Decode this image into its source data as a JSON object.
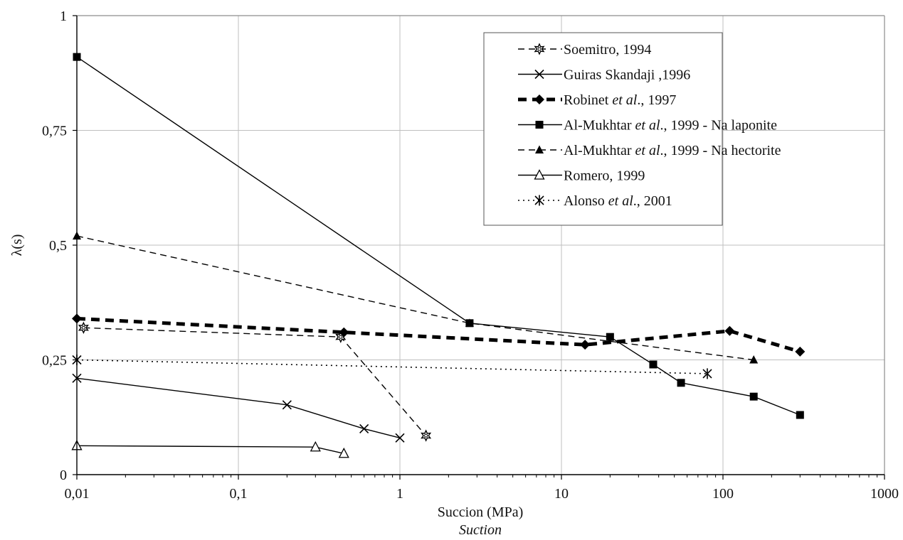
{
  "chart_data": {
    "type": "line",
    "xlabel": "Succion (MPa)",
    "xlabel2": "Suction",
    "ylabel": "λ(s)",
    "xscale": "log",
    "xlim": [
      0.01,
      1000
    ],
    "ylim": [
      0,
      1
    ],
    "x_ticks": [
      0.01,
      0.1,
      1,
      10,
      100,
      1000
    ],
    "x_tick_labels": [
      "0,01",
      "0,1",
      "1",
      "10",
      "100",
      "1000"
    ],
    "y_ticks": [
      0,
      0.25,
      0.5,
      0.75,
      1
    ],
    "y_tick_labels": [
      "0",
      "0,25",
      "0,5",
      "0,75",
      "1"
    ],
    "grid": true,
    "legend_position": "top-right",
    "series": [
      {
        "name": "Soemitro, 1994",
        "legend_parts": [
          {
            "t": "Soemitro, 1994",
            "i": false
          }
        ],
        "marker": "star-open",
        "line": "dashed",
        "x": [
          0.011,
          0.43,
          1.45
        ],
        "y": [
          0.32,
          0.3,
          0.085
        ]
      },
      {
        "name": "Guiras Skandaji ,1996",
        "legend_parts": [
          {
            "t": "Guiras Skandaji ,1996",
            "i": false
          }
        ],
        "marker": "x",
        "line": "solid",
        "x": [
          0.01,
          0.2,
          0.6,
          1.0
        ],
        "y": [
          0.21,
          0.152,
          0.1,
          0.08
        ]
      },
      {
        "name": "Robinet et al., 1997",
        "legend_parts": [
          {
            "t": "Robinet ",
            "i": false
          },
          {
            "t": "et al",
            "i": true
          },
          {
            "t": "., 1997",
            "i": false
          }
        ],
        "marker": "diamond",
        "line": "thick-dashed",
        "x": [
          0.01,
          0.45,
          14,
          110,
          300
        ],
        "y": [
          0.34,
          0.31,
          0.283,
          0.313,
          0.268
        ]
      },
      {
        "name": "Al-Mukhtar et al., 1999 - Na laponite",
        "legend_parts": [
          {
            "t": "Al-Mukhtar ",
            "i": false
          },
          {
            "t": "et al",
            "i": true
          },
          {
            "t": "., 1999 - Na laponite",
            "i": false
          }
        ],
        "marker": "square",
        "line": "solid",
        "x": [
          0.01,
          2.7,
          20,
          37,
          55,
          155,
          300
        ],
        "y": [
          0.91,
          0.33,
          0.3,
          0.24,
          0.2,
          0.17,
          0.13
        ]
      },
      {
        "name": "Al-Mukhtar et al., 1999 - Na hectorite",
        "legend_parts": [
          {
            "t": "Al-Mukhtar ",
            "i": false
          },
          {
            "t": "et al",
            "i": true
          },
          {
            "t": "., 1999 - Na hectorite",
            "i": false
          }
        ],
        "marker": "triangle",
        "line": "dashed",
        "x": [
          0.01,
          2.7,
          155
        ],
        "y": [
          0.52,
          0.33,
          0.25
        ]
      },
      {
        "name": "Romero, 1999",
        "legend_parts": [
          {
            "t": "Romero, 1999",
            "i": false
          }
        ],
        "marker": "triangle-open",
        "line": "solid",
        "x": [
          0.01,
          0.3,
          0.45
        ],
        "y": [
          0.063,
          0.06,
          0.046
        ]
      },
      {
        "name": "Alonso et al., 2001",
        "legend_parts": [
          {
            "t": "Alonso ",
            "i": false
          },
          {
            "t": "et al",
            "i": true
          },
          {
            "t": "., 2001",
            "i": false
          }
        ],
        "marker": "asterisk",
        "line": "dotted",
        "x": [
          0.01,
          80
        ],
        "y": [
          0.25,
          0.22
        ]
      }
    ]
  }
}
